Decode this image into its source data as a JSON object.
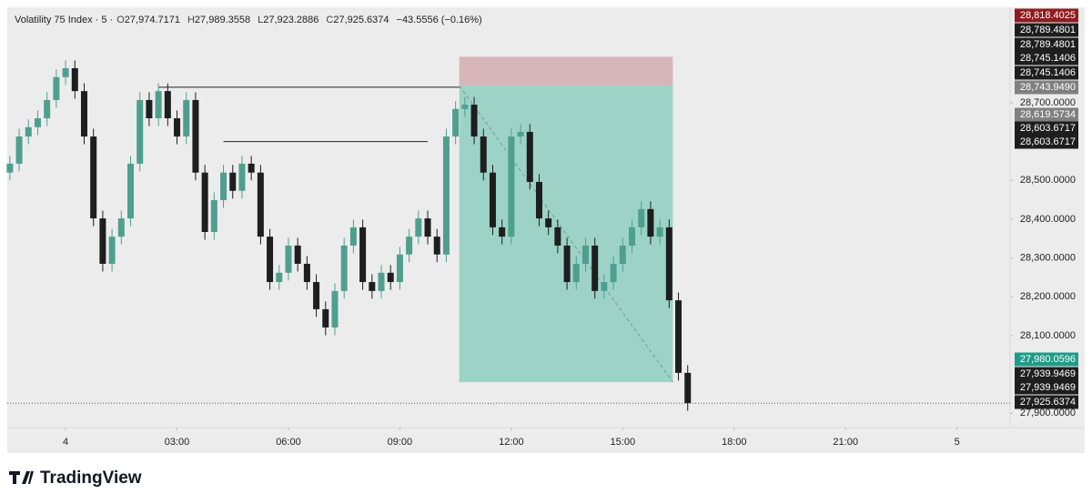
{
  "chart_data": {
    "type": "candlestick",
    "title": "Volatility 75 Index · 5 ·",
    "ohlc": [
      {
        "key": "O",
        "value": "27,974.7171"
      },
      {
        "key": "H",
        "value": "27,989.3558"
      },
      {
        "key": "L",
        "value": "27,923.2886"
      },
      {
        "key": "C",
        "value": "27,925.6374"
      }
    ],
    "change": "−43.5556 (−0.16%)",
    "up_color": "#4f9f8f",
    "down_color": "#1e1e1e",
    "x": [
      -1.5,
      -1.25,
      -1,
      -0.75,
      -0.5,
      -0.25,
      0,
      0.25,
      0.5,
      0.75,
      1,
      1.25,
      1.5,
      1.75,
      2,
      2.25,
      2.5,
      2.75,
      3,
      3.25,
      3.5,
      3.75,
      4,
      4.25,
      4.5,
      4.75,
      5,
      5.25,
      5.5,
      5.75,
      6,
      6.25,
      6.5,
      6.75,
      7,
      7.25,
      7.5,
      7.75,
      8,
      8.25,
      8.5,
      8.75,
      9,
      9.25,
      9.5,
      9.75,
      10,
      10.25,
      10.5,
      10.75,
      11,
      11.25,
      11.5,
      11.75,
      12,
      12.25,
      12.5,
      12.75,
      13,
      13.25,
      13.5,
      13.75,
      14,
      14.25,
      14.5,
      14.75,
      15,
      15.25,
      15.5,
      15.75,
      16,
      16.25,
      16.5,
      16.75
    ],
    "open": [
      28520,
      28543,
      28613,
      28637,
      28660,
      28707,
      28766,
      28789,
      28730,
      28613,
      28402,
      28285,
      28355,
      28402,
      28543,
      28707,
      28660,
      28730,
      28660,
      28613,
      28707,
      28520,
      28367,
      28449,
      28520,
      28473,
      28543,
      28520,
      28355,
      28238,
      28262,
      28332,
      28285,
      28238,
      28168,
      28121,
      28215,
      28332,
      28379,
      28238,
      28215,
      28262,
      28238,
      28309,
      28355,
      28402,
      28355,
      28309,
      28613,
      28684,
      28695,
      28613,
      28520,
      28379,
      28355,
      28613,
      28625,
      28496,
      28402,
      28379,
      28332,
      28238,
      28285,
      28332,
      28215,
      28238,
      28285,
      28332,
      28379,
      28426,
      28355,
      28379,
      28191,
      28004
    ],
    "high": [
      28563,
      28633,
      28657,
      28680,
      28727,
      28786,
      28809,
      28809,
      28750,
      28633,
      28422,
      28375,
      28422,
      28563,
      28727,
      28727,
      28750,
      28750,
      28680,
      28727,
      28727,
      28540,
      28469,
      28540,
      28540,
      28563,
      28563,
      28540,
      28375,
      28282,
      28352,
      28352,
      28305,
      28258,
      28188,
      28235,
      28352,
      28399,
      28399,
      28258,
      28282,
      28282,
      28329,
      28375,
      28422,
      28422,
      28375,
      28633,
      28704,
      28715,
      28715,
      28633,
      28540,
      28399,
      28633,
      28645,
      28645,
      28516,
      28422,
      28399,
      28352,
      28305,
      28352,
      28352,
      28258,
      28305,
      28352,
      28399,
      28446,
      28446,
      28399,
      28399,
      28211,
      28024
    ],
    "low": [
      28500,
      28523,
      28593,
      28617,
      28640,
      28687,
      28746,
      28710,
      28593,
      28382,
      28265,
      28265,
      28335,
      28382,
      28523,
      28640,
      28640,
      28640,
      28593,
      28593,
      28500,
      28347,
      28347,
      28429,
      28453,
      28453,
      28500,
      28335,
      28218,
      28218,
      28242,
      28265,
      28218,
      28148,
      28101,
      28101,
      28195,
      28312,
      28218,
      28195,
      28195,
      28218,
      28218,
      28289,
      28335,
      28335,
      28289,
      28289,
      28593,
      28664,
      28593,
      28500,
      28359,
      28335,
      28335,
      28593,
      28476,
      28382,
      28359,
      28312,
      28218,
      28218,
      28265,
      28195,
      28195,
      28218,
      28265,
      28312,
      28359,
      28335,
      28335,
      28171,
      27984,
      27906
    ],
    "close": [
      28543,
      28613,
      28637,
      28660,
      28707,
      28766,
      28789,
      28730,
      28613,
      28402,
      28285,
      28355,
      28402,
      28543,
      28707,
      28660,
      28730,
      28660,
      28613,
      28707,
      28520,
      28367,
      28449,
      28520,
      28473,
      28543,
      28520,
      28355,
      28238,
      28262,
      28332,
      28285,
      28238,
      28168,
      28121,
      28215,
      28332,
      28379,
      28238,
      28215,
      28262,
      28238,
      28309,
      28355,
      28402,
      28355,
      28309,
      28613,
      28684,
      28695,
      28613,
      28520,
      28379,
      28355,
      28613,
      28625,
      28496,
      28402,
      28379,
      28332,
      28238,
      28285,
      28332,
      28215,
      28238,
      28285,
      28332,
      28379,
      28426,
      28355,
      28379,
      28191,
      28004,
      27926
    ],
    "xlim": [
      -1.57,
      25.43
    ],
    "ylim": [
      27863,
      28946
    ],
    "xticks": [
      {
        "value": 0,
        "label": "4"
      },
      {
        "value": 3,
        "label": "03:00"
      },
      {
        "value": 6,
        "label": "06:00"
      },
      {
        "value": 9,
        "label": "09:00"
      },
      {
        "value": 12,
        "label": "12:00"
      },
      {
        "value": 15,
        "label": "15:00"
      },
      {
        "value": 18,
        "label": "18:00"
      },
      {
        "value": 21,
        "label": "21:00"
      },
      {
        "value": 24,
        "label": "5"
      }
    ],
    "yticks": [
      {
        "value": 28700,
        "label": "28,700.0000"
      },
      {
        "value": 28500,
        "label": "28,500.0000"
      },
      {
        "value": 28400,
        "label": "28,400.0000"
      },
      {
        "value": 28300,
        "label": "28,300.0000"
      },
      {
        "value": 28200,
        "label": "28,200.0000"
      },
      {
        "value": 28100,
        "label": "28,100.0000"
      },
      {
        "value": 27900,
        "label": "27,900.0000"
      }
    ],
    "grid": false,
    "last_price": 27925.6374,
    "levels": [
      {
        "price": 28740,
        "x": [
          2.5,
          10.6
        ]
      },
      {
        "price": 28600,
        "x": [
          4.25,
          9.75
        ]
      }
    ],
    "position": {
      "entry": 28743.949,
      "stop": 28818.4025,
      "target": 27980.0596,
      "x": [
        10.6,
        16.35
      ],
      "stop_color": "#d6b6b8",
      "target_color": "#9dd3c7"
    },
    "price_tags": [
      {
        "label": "28,818.4025",
        "color": "#8e1d20"
      },
      {
        "label": "28,789.4801",
        "color": "#1e1e1e"
      },
      {
        "label": "28,789.4801",
        "color": "#1e1e1e"
      },
      {
        "label": "28,745.1406",
        "color": "#1e1e1e"
      },
      {
        "label": "28,745.1406",
        "color": "#1e1e1e"
      },
      {
        "label": "28,743.9490",
        "color": "#808080"
      },
      {
        "label": "28,619.5734",
        "color": "#808080"
      },
      {
        "label": "28,603.6717",
        "color": "#1e1e1e"
      },
      {
        "label": "28,603.6717",
        "color": "#1e1e1e"
      },
      {
        "label": "27,980.0596",
        "color": "#1f9c87"
      },
      {
        "label": "27,939.9469",
        "color": "#1e1e1e"
      },
      {
        "label": "27,939.9469",
        "color": "#1e1e1e"
      },
      {
        "label": "27,925.6374",
        "color": "#1e1e1e"
      }
    ]
  },
  "brand": "TradingView"
}
